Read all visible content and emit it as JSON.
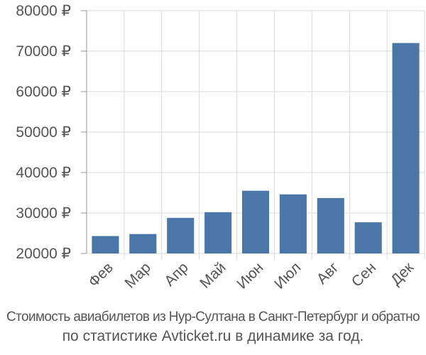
{
  "chart_data": {
    "type": "bar",
    "categories": [
      "Фев",
      "Мар",
      "Апр",
      "Май",
      "Июн",
      "Июл",
      "Авг",
      "Сен",
      "Дек"
    ],
    "values": [
      24300,
      24800,
      28800,
      30200,
      35500,
      34600,
      33700,
      27700,
      72000
    ],
    "ylim": [
      20000,
      80000
    ],
    "y_ticks": [
      20000,
      30000,
      40000,
      50000,
      60000,
      70000,
      80000
    ],
    "y_tick_labels": [
      "20000 ₽",
      "30000 ₽",
      "40000 ₽",
      "50000 ₽",
      "60000 ₽",
      "70000 ₽",
      "80000 ₽"
    ],
    "bar_color": "#4a76a8",
    "grid": true,
    "legend": "none",
    "title": "",
    "xlabel": "",
    "ylabel": ""
  },
  "caption": {
    "line1": "Стоимость авиабилетов из Нур-Султана в Санкт-Петербург и обратно",
    "line2": "по статистике Avticket.ru в динамике за год."
  }
}
